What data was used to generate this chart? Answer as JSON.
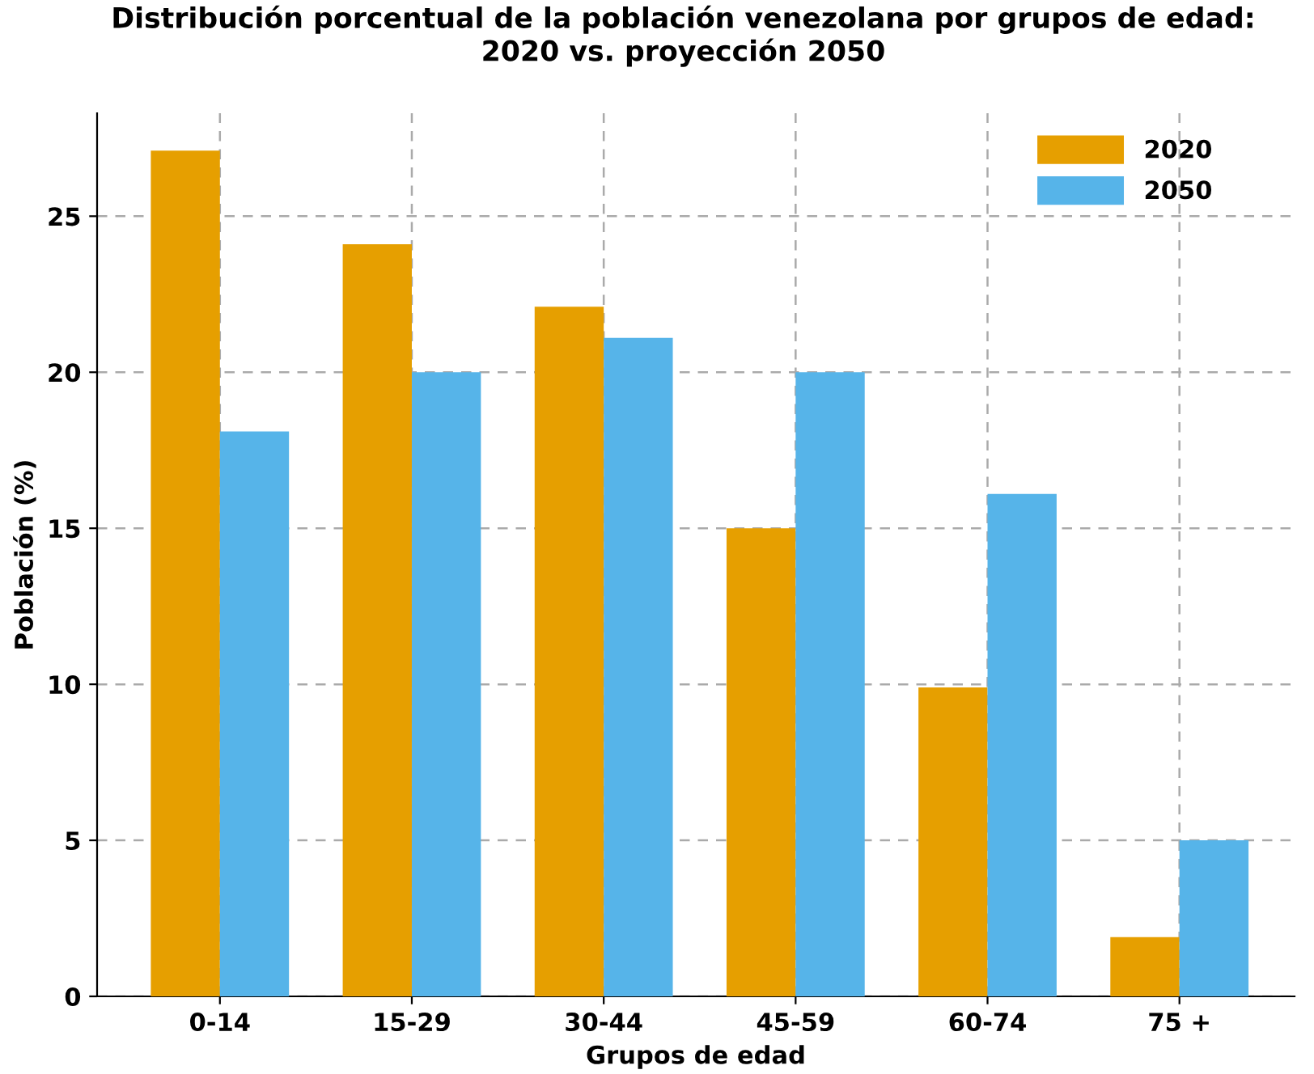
{
  "chart_data": {
    "type": "bar",
    "title": "Distribución porcentual de la población venezolana por grupos de edad:\n2020 vs. proyección 2050",
    "xlabel": "Grupos de edad",
    "ylabel": "Población (%)",
    "categories": [
      "0-14",
      "15-29",
      "30-44",
      "45-59",
      "60-74",
      "75 +"
    ],
    "series": [
      {
        "name": "2020",
        "color": "#e69f00",
        "values": [
          27.1,
          24.1,
          22.1,
          15.0,
          9.9,
          1.9
        ]
      },
      {
        "name": "2050",
        "color": "#56b4e9",
        "values": [
          18.1,
          20.0,
          21.1,
          20.0,
          16.1,
          5.0
        ]
      }
    ],
    "ylim": [
      0,
      28.3
    ],
    "yticks": [
      0,
      5,
      10,
      15,
      20,
      25
    ],
    "grid": true,
    "legend": "top right"
  }
}
